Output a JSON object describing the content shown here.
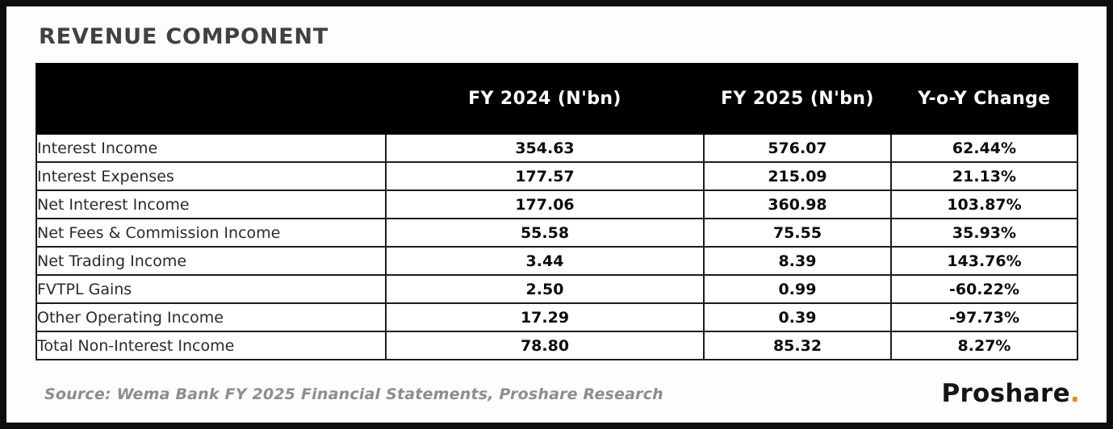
{
  "page": {
    "title": "REVENUE COMPONENT",
    "source": "Source: Wema Bank FY 2025 Financial Statements, Proshare Research",
    "brand": {
      "name": "Proshare",
      "dot": ".",
      "dot_color": "#ef831d"
    },
    "colors": {
      "frame": "#0d0d0d",
      "header_bg": "#000000",
      "header_text": "#ffffff",
      "table_border": "#1c1c1c",
      "title_text": "#424040",
      "source_text": "#8e8c8c",
      "accent_orange": "#ef831d"
    }
  },
  "table": {
    "columns": [
      "",
      "FY 2024 (N'bn)",
      "FY 2025 (N'bn)",
      "Y-o-Y Change"
    ],
    "rows": [
      {
        "label": "Interest Income",
        "fy2024": "354.63",
        "fy2025": "576.07",
        "yoy": "62.44%"
      },
      {
        "label": "Interest Expenses",
        "fy2024": "177.57",
        "fy2025": "215.09",
        "yoy": "21.13%"
      },
      {
        "label": "Net Interest Income",
        "fy2024": "177.06",
        "fy2025": "360.98",
        "yoy": "103.87%"
      },
      {
        "label": "Net Fees & Commission Income",
        "fy2024": "55.58",
        "fy2025": "75.55",
        "yoy": "35.93%"
      },
      {
        "label": "Net Trading Income",
        "fy2024": "3.44",
        "fy2025": "8.39",
        "yoy": "143.76%"
      },
      {
        "label": "FVTPL Gains",
        "fy2024": "2.50",
        "fy2025": "0.99",
        "yoy": "-60.22%"
      },
      {
        "label": "Other Operating Income",
        "fy2024": "17.29",
        "fy2025": "0.39",
        "yoy": "-97.73%"
      },
      {
        "label": "Total Non-Interest Income",
        "fy2024": "78.80",
        "fy2025": "85.32",
        "yoy": "8.27%"
      }
    ]
  },
  "chart_data": {
    "type": "table",
    "title": "REVENUE COMPONENT",
    "columns": [
      "Revenue Component",
      "FY 2024 (N'bn)",
      "FY 2025 (N'bn)",
      "Y-o-Y Change (%)"
    ],
    "rows": [
      {
        "label": "Interest Income",
        "fy2024_nbn": 354.63,
        "fy2025_nbn": 576.07,
        "yoy_change_pct": 62.44
      },
      {
        "label": "Interest Expenses",
        "fy2024_nbn": 177.57,
        "fy2025_nbn": 215.09,
        "yoy_change_pct": 21.13
      },
      {
        "label": "Net Interest Income",
        "fy2024_nbn": 177.06,
        "fy2025_nbn": 360.98,
        "yoy_change_pct": 103.87
      },
      {
        "label": "Net Fees & Commission Income",
        "fy2024_nbn": 55.58,
        "fy2025_nbn": 75.55,
        "yoy_change_pct": 35.93
      },
      {
        "label": "Net Trading Income",
        "fy2024_nbn": 3.44,
        "fy2025_nbn": 8.39,
        "yoy_change_pct": 143.76
      },
      {
        "label": "FVTPL Gains",
        "fy2024_nbn": 2.5,
        "fy2025_nbn": 0.99,
        "yoy_change_pct": -60.22
      },
      {
        "label": "Other Operating Income",
        "fy2024_nbn": 17.29,
        "fy2025_nbn": 0.39,
        "yoy_change_pct": -97.73
      },
      {
        "label": "Total Non-Interest Income",
        "fy2024_nbn": 78.8,
        "fy2025_nbn": 85.32,
        "yoy_change_pct": 8.27
      }
    ],
    "source": "Source: Wema Bank FY 2025 Financial Statements, Proshare Research"
  }
}
